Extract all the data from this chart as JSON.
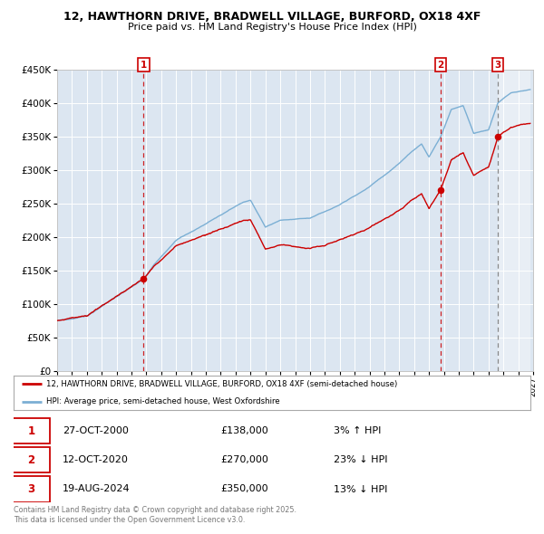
{
  "title_line1": "12, HAWTHORN DRIVE, BRADWELL VILLAGE, BURFORD, OX18 4XF",
  "title_line2": "Price paid vs. HM Land Registry's House Price Index (HPI)",
  "legend_label_red": "12, HAWTHORN DRIVE, BRADWELL VILLAGE, BURFORD, OX18 4XF (semi-detached house)",
  "legend_label_blue": "HPI: Average price, semi-detached house, West Oxfordshire",
  "table_rows": [
    {
      "num": "1",
      "date": "27-OCT-2000",
      "price": "£138,000",
      "hpi": "3% ↑ HPI"
    },
    {
      "num": "2",
      "date": "12-OCT-2020",
      "price": "£270,000",
      "hpi": "23% ↓ HPI"
    },
    {
      "num": "3",
      "date": "19-AUG-2024",
      "price": "£350,000",
      "hpi": "13% ↓ HPI"
    }
  ],
  "footer": "Contains HM Land Registry data © Crown copyright and database right 2025.\nThis data is licensed under the Open Government Licence v3.0.",
  "sale1_year": 2000.82,
  "sale2_year": 2020.78,
  "sale3_year": 2024.63,
  "sale1_price": 138000,
  "sale2_price": 270000,
  "sale3_price": 350000,
  "xmin": 1995,
  "xmax": 2027,
  "ymin": 0,
  "ymax": 450000,
  "yticks": [
    0,
    50000,
    100000,
    150000,
    200000,
    250000,
    300000,
    350000,
    400000,
    450000
  ],
  "background_color": "#dce6f1",
  "red_color": "#cc0000",
  "blue_color": "#7bafd4",
  "hatch_color": "#aaaacc",
  "grid_color": "#ffffff",
  "spine_color": "#bbbbbb"
}
